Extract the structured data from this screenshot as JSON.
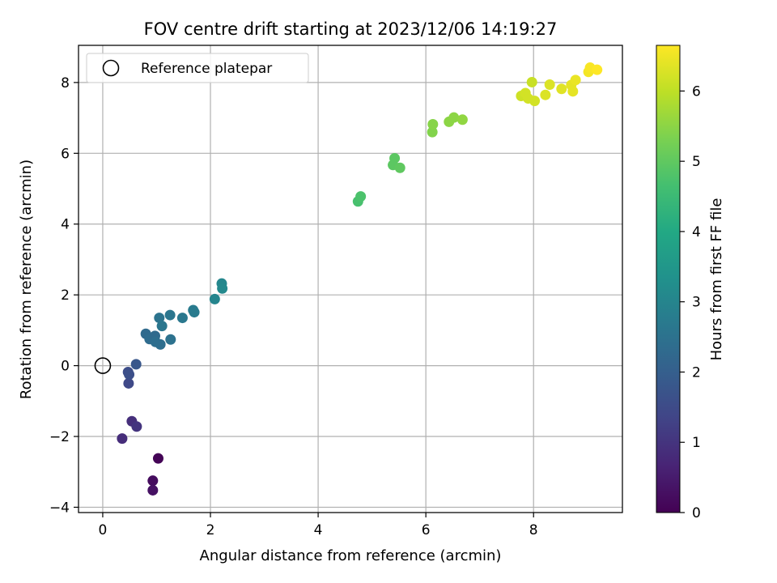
{
  "chart_data": {
    "type": "scatter",
    "title": "FOV centre drift starting at 2023/12/06 14:19:27",
    "xlabel": "Angular distance from reference (arcmin)",
    "ylabel": "Rotation from reference (arcmin)",
    "xlim": [
      -0.45,
      9.65
    ],
    "ylim": [
      -4.15,
      9.05
    ],
    "xticks": [
      0,
      2,
      4,
      6,
      8
    ],
    "yticks": [
      -4,
      -2,
      0,
      2,
      4,
      6,
      8
    ],
    "grid": true,
    "legend": {
      "position": "top-left",
      "entries": [
        "Reference platepar"
      ]
    },
    "reference_point": {
      "x": 0,
      "y": 0
    },
    "colorbar": {
      "label": "Hours from first FF file",
      "range": [
        0,
        6.65
      ],
      "ticks": [
        0,
        1,
        2,
        3,
        4,
        5,
        6
      ],
      "colormap": "viridis"
    },
    "points": [
      {
        "x": 1.03,
        "y": -2.62,
        "c": 0.05
      },
      {
        "x": 0.93,
        "y": -3.25,
        "c": 0.2
      },
      {
        "x": 0.93,
        "y": -3.52,
        "c": 0.3
      },
      {
        "x": 0.36,
        "y": -2.06,
        "c": 0.85
      },
      {
        "x": 0.54,
        "y": -1.57,
        "c": 0.9
      },
      {
        "x": 0.63,
        "y": -1.72,
        "c": 1.0
      },
      {
        "x": 0.48,
        "y": -0.5,
        "c": 1.45
      },
      {
        "x": 0.47,
        "y": -0.18,
        "c": 1.55
      },
      {
        "x": 0.49,
        "y": -0.25,
        "c": 1.6
      },
      {
        "x": 0.62,
        "y": 0.04,
        "c": 1.8
      },
      {
        "x": 0.8,
        "y": 0.9,
        "c": 2.3
      },
      {
        "x": 0.87,
        "y": 0.75,
        "c": 2.35
      },
      {
        "x": 0.97,
        "y": 0.84,
        "c": 2.3
      },
      {
        "x": 0.98,
        "y": 0.67,
        "c": 2.4
      },
      {
        "x": 1.07,
        "y": 0.6,
        "c": 2.4
      },
      {
        "x": 1.26,
        "y": 0.74,
        "c": 2.5
      },
      {
        "x": 1.05,
        "y": 1.35,
        "c": 2.55
      },
      {
        "x": 1.1,
        "y": 1.12,
        "c": 2.6
      },
      {
        "x": 1.25,
        "y": 1.43,
        "c": 2.6
      },
      {
        "x": 1.48,
        "y": 1.35,
        "c": 2.65
      },
      {
        "x": 1.68,
        "y": 1.57,
        "c": 2.75
      },
      {
        "x": 1.7,
        "y": 1.51,
        "c": 2.75
      },
      {
        "x": 2.08,
        "y": 1.88,
        "c": 3.0
      },
      {
        "x": 2.21,
        "y": 2.32,
        "c": 3.05
      },
      {
        "x": 2.22,
        "y": 2.18,
        "c": 3.1
      },
      {
        "x": 4.74,
        "y": 4.64,
        "c": 4.7
      },
      {
        "x": 4.79,
        "y": 4.78,
        "c": 4.75
      },
      {
        "x": 5.39,
        "y": 5.67,
        "c": 4.95
      },
      {
        "x": 5.42,
        "y": 5.86,
        "c": 4.95
      },
      {
        "x": 5.52,
        "y": 5.59,
        "c": 5.0
      },
      {
        "x": 6.12,
        "y": 6.6,
        "c": 5.4
      },
      {
        "x": 6.13,
        "y": 6.82,
        "c": 5.45
      },
      {
        "x": 6.43,
        "y": 6.89,
        "c": 5.5
      },
      {
        "x": 6.52,
        "y": 7.01,
        "c": 5.5
      },
      {
        "x": 6.68,
        "y": 6.95,
        "c": 5.55
      },
      {
        "x": 7.77,
        "y": 7.62,
        "c": 6.15
      },
      {
        "x": 7.85,
        "y": 7.7,
        "c": 6.2
      },
      {
        "x": 7.9,
        "y": 7.55,
        "c": 6.2
      },
      {
        "x": 7.97,
        "y": 8.01,
        "c": 6.1
      },
      {
        "x": 8.02,
        "y": 7.48,
        "c": 6.2
      },
      {
        "x": 8.22,
        "y": 7.65,
        "c": 6.3
      },
      {
        "x": 8.3,
        "y": 7.94,
        "c": 6.3
      },
      {
        "x": 8.52,
        "y": 7.82,
        "c": 6.35
      },
      {
        "x": 8.7,
        "y": 7.93,
        "c": 6.4
      },
      {
        "x": 8.73,
        "y": 7.75,
        "c": 6.4
      },
      {
        "x": 8.78,
        "y": 8.07,
        "c": 6.45
      },
      {
        "x": 9.02,
        "y": 8.3,
        "c": 6.55
      },
      {
        "x": 9.05,
        "y": 8.42,
        "c": 6.6
      },
      {
        "x": 9.18,
        "y": 8.36,
        "c": 6.65
      }
    ]
  }
}
